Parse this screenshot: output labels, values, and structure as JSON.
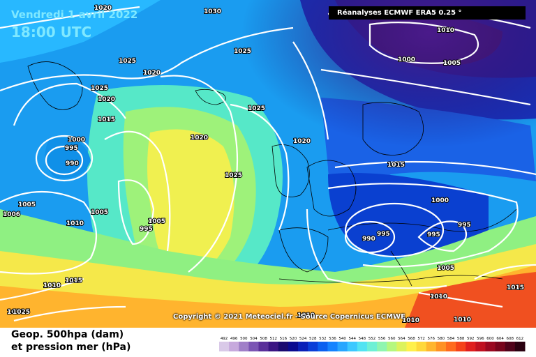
{
  "header": {
    "date": "Vendredi 1 avril 2022",
    "time": "18:00 UTC",
    "source": "Réanalyses ECMWF ERA5 0.25 °"
  },
  "copyright": "Copyright © 2021 Meteociel.fr - Source Copernicus ECMWF",
  "legend": {
    "line1": "Geop. 500hpa (dam)",
    "line2": "et pression mer (hPa)",
    "scale_values": [
      "492",
      "496",
      "500",
      "504",
      "508",
      "512",
      "516",
      "520",
      "524",
      "528",
      "532",
      "536",
      "540",
      "544",
      "548",
      "552",
      "556",
      "560",
      "564",
      "568",
      "572",
      "576",
      "580",
      "584",
      "588",
      "592",
      "596",
      "600",
      "604",
      "608",
      "612"
    ],
    "scale_colors": [
      "#d9c9e8",
      "#c7a9dd",
      "#a07fc8",
      "#7b55b4",
      "#5a2f9a",
      "#3a1583",
      "#1a0a70",
      "#0a0a90",
      "#0a20b8",
      "#0a3ed8",
      "#0a60f0",
      "#1483ff",
      "#28a6ff",
      "#3cc8ff",
      "#52e3f2",
      "#6ef0d5",
      "#8ff5b0",
      "#b5f77e",
      "#dcf25c",
      "#fff04a",
      "#ffd83a",
      "#ffb52e",
      "#ff9124",
      "#ff6a1e",
      "#f5421a",
      "#e01e1e",
      "#c01020",
      "#9a0820",
      "#78041c",
      "#50021a",
      "#2a0010"
    ]
  },
  "isobars": [
    "1030",
    "1020",
    "1025",
    "1025",
    "1020",
    "1025",
    "1020",
    "1015",
    "1000",
    "995",
    "990",
    "1020",
    "1025",
    "1025",
    "1020",
    "1015",
    "1010",
    "1005",
    "1000",
    "1005",
    "1005",
    "1010",
    "1006",
    "995",
    "1005",
    "1000",
    "995",
    "990",
    "995",
    "995",
    "1005",
    "1010",
    "1015",
    "1010",
    "1010",
    "1015",
    "1020",
    "1025",
    "1010",
    "1010"
  ]
}
